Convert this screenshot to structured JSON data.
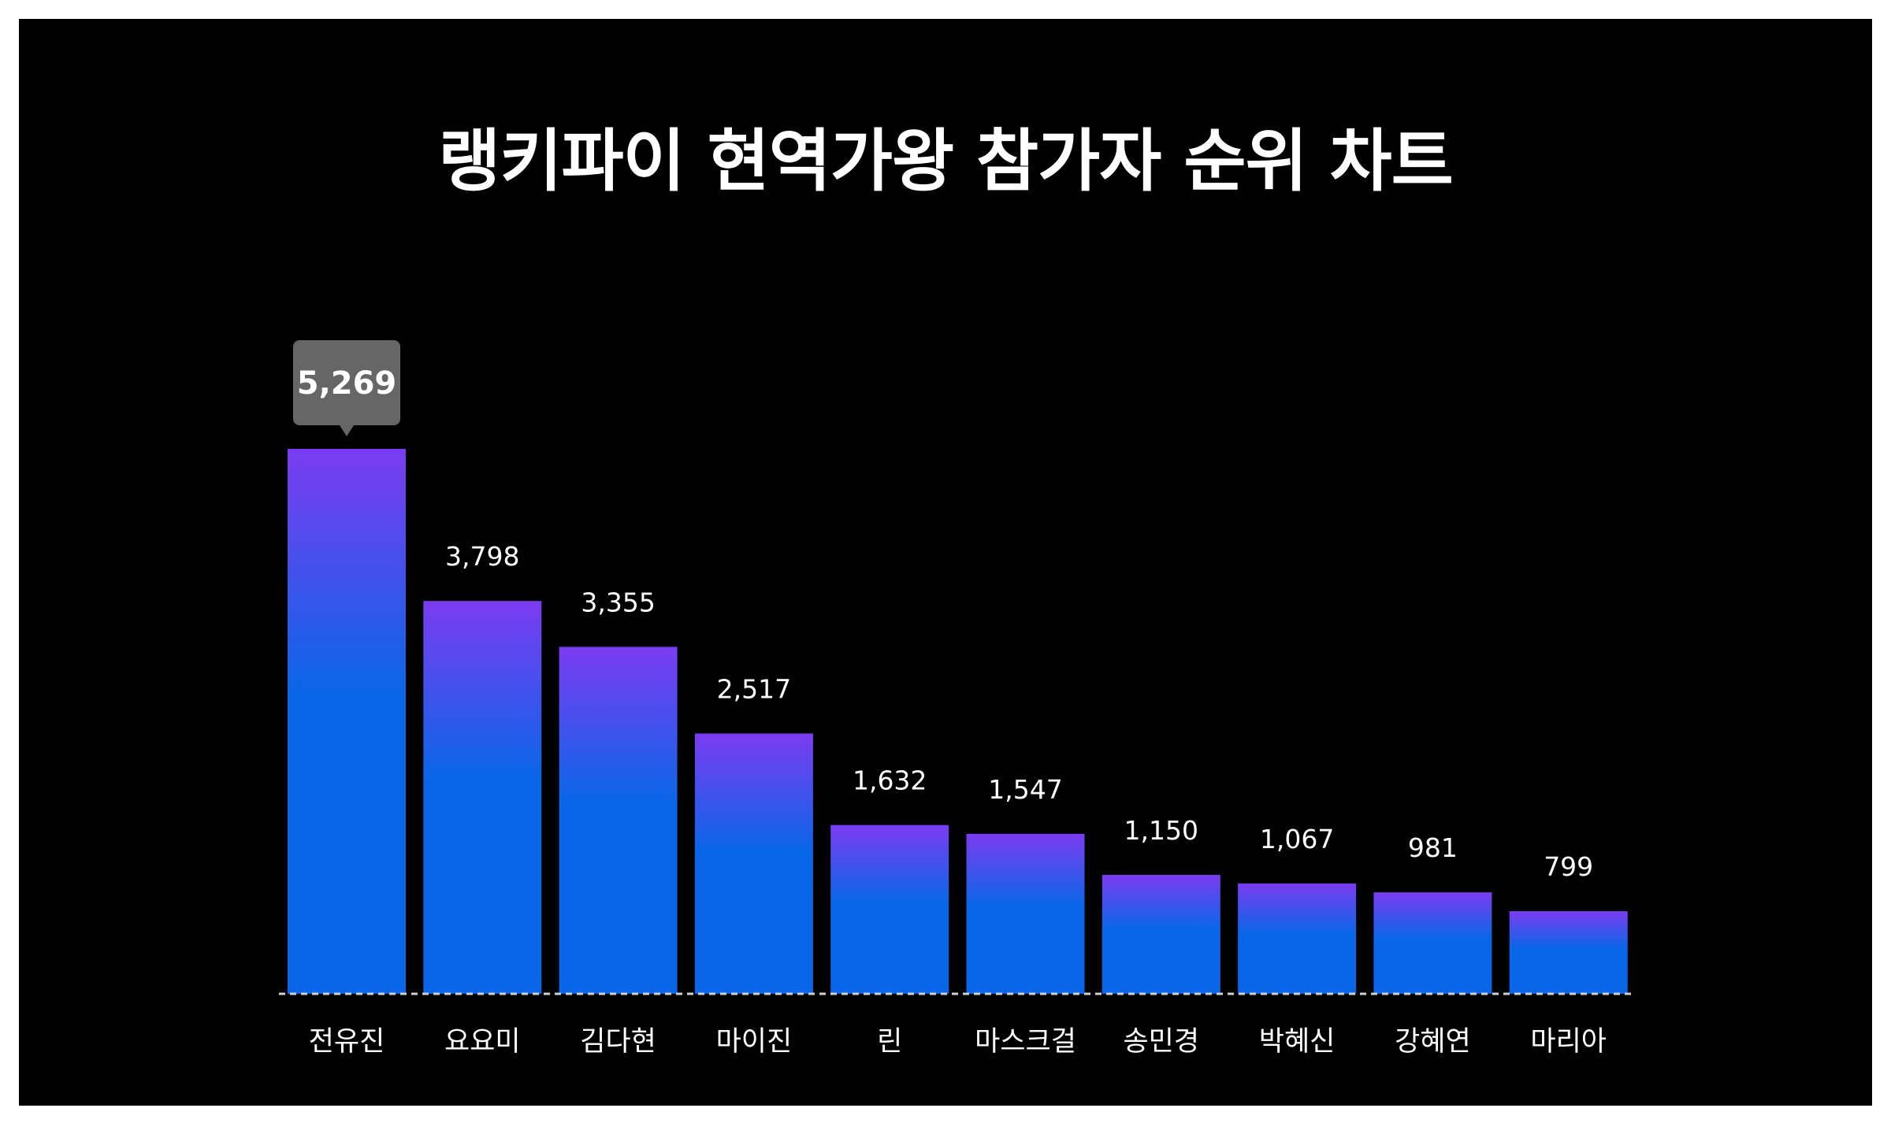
{
  "chart_data": {
    "type": "bar",
    "title": "랭키파이 현역가왕 참가자 순위 차트",
    "categories": [
      "전유진",
      "요요미",
      "김다현",
      "마이진",
      "린",
      "마스크걸",
      "송민경",
      "박혜신",
      "강혜연",
      "마리아"
    ],
    "values": [
      5269,
      3798,
      3355,
      2517,
      1632,
      1547,
      1150,
      1067,
      981,
      799
    ],
    "value_labels": [
      "5,269",
      "3,798",
      "3,355",
      "2,517",
      "1,632",
      "1,547",
      "1,150",
      "1,067",
      "981",
      "799"
    ],
    "ylim": [
      0,
      5269
    ],
    "grid": false,
    "legend": "none",
    "highlight_index": 0
  },
  "colors": {
    "background": "#000000",
    "page": "#ffffff",
    "bar_top": "#7b3cf0",
    "bar_bottom": "#0a66e8",
    "tooltip": "#666666",
    "text": "#ffffff",
    "baseline": "#cfcfcf"
  }
}
